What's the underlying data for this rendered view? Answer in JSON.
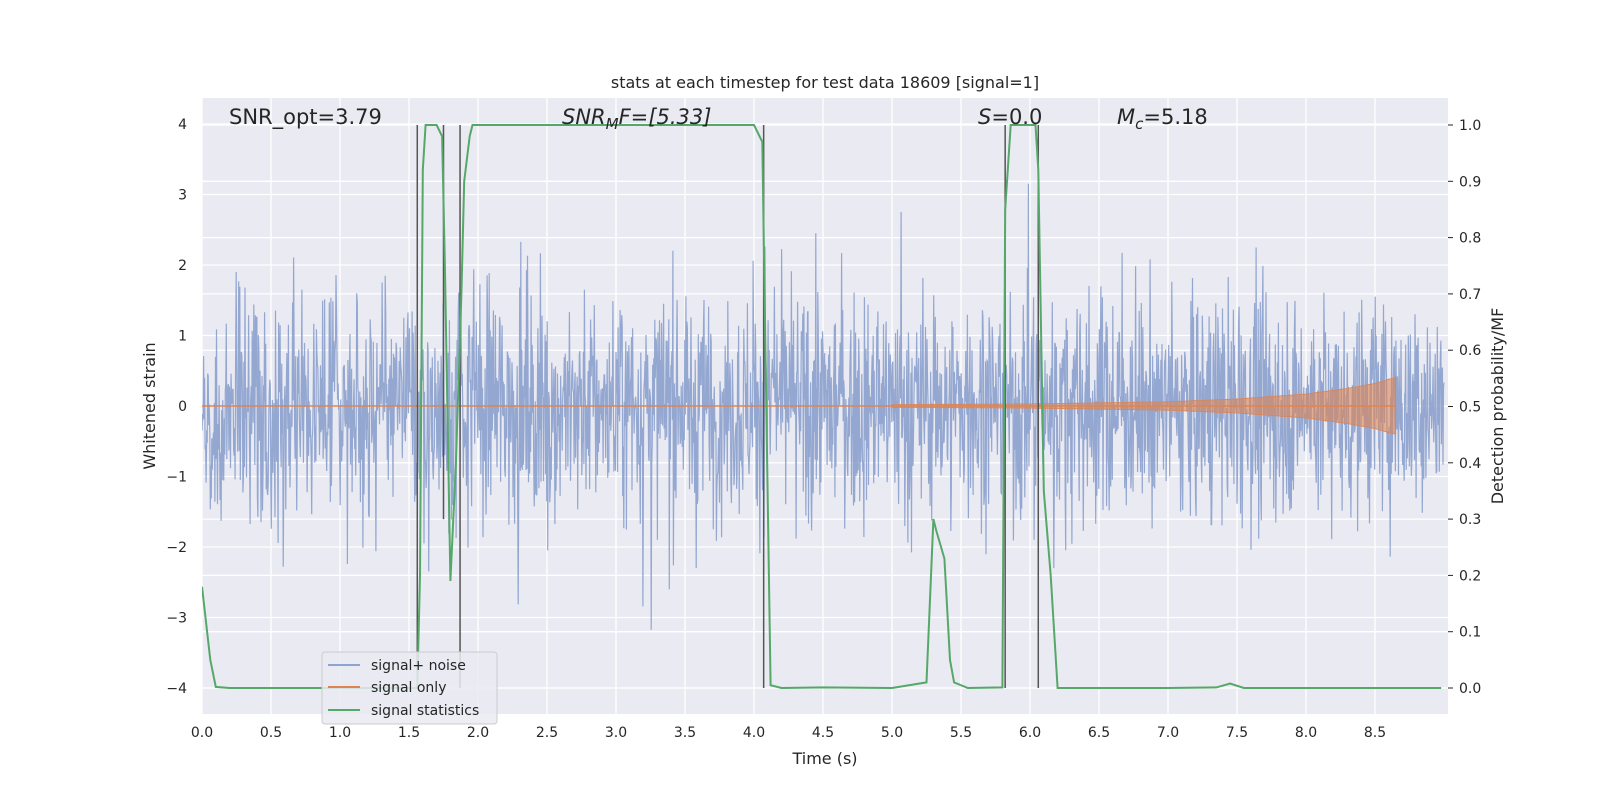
{
  "chart_data": {
    "type": "line",
    "title": "stats at each timestep for test data 18609 [signal=1]",
    "xlabel": "Time (s)",
    "ylabel": "Whitened strain",
    "ylabel_right": "Detection probability/MF",
    "xlim": [
      0.0,
      9.0
    ],
    "ylim": [
      -4.35,
      4.4
    ],
    "ylim_right": [
      -0.05,
      1.04
    ],
    "grid": true,
    "legend_placement": "lower-left",
    "x_ticks": [
      "0.0",
      "0.5",
      "1.0",
      "1.5",
      "2.0",
      "2.5",
      "3.0",
      "3.5",
      "4.0",
      "4.5",
      "5.0",
      "5.5",
      "6.0",
      "6.5",
      "7.0",
      "7.5",
      "8.0",
      "8.5"
    ],
    "y_ticks": [
      "−4",
      "−3",
      "−2",
      "−1",
      "0",
      "1",
      "2",
      "3",
      "4"
    ],
    "y_ticks_right": [
      "0.0",
      "0.1",
      "0.2",
      "0.3",
      "0.4",
      "0.5",
      "0.6",
      "0.7",
      "0.8",
      "0.9",
      "1.0"
    ],
    "annotations": {
      "snr_opt": "SNR_opt=3.79",
      "snr_mf_base": "SNR",
      "snr_mf_sub": "M",
      "snr_mf_rest": "F=[5.33]",
      "s_sym": "S",
      "s_rest": "=0.0",
      "mc_sym": "M",
      "mc_sub": "c",
      "mc_rest": "=5.18"
    },
    "series": [
      {
        "name": "signal+ noise",
        "color": "#8ea3cf",
        "kind": "noise",
        "amplitude_range": [
          -4.0,
          4.0
        ],
        "typical_envelope": [
          -2.6,
          2.6
        ]
      },
      {
        "name": "signal only",
        "color": "#dd8452",
        "kind": "chirp",
        "x_end": 8.65,
        "envelope": [
          [
            5.0,
            0.02
          ],
          [
            6.0,
            0.03
          ],
          [
            7.0,
            0.06
          ],
          [
            7.5,
            0.1
          ],
          [
            8.0,
            0.17
          ],
          [
            8.3,
            0.25
          ],
          [
            8.5,
            0.32
          ],
          [
            8.6,
            0.38
          ],
          [
            8.65,
            0.4
          ]
        ]
      },
      {
        "name": "signal statistics",
        "color": "#55a868",
        "x": [
          0.0,
          0.06,
          0.1,
          0.2,
          1.0,
          1.5,
          1.56,
          1.58,
          1.6,
          1.62,
          1.66,
          1.7,
          1.74,
          1.76,
          1.8,
          1.84,
          1.88,
          1.9,
          1.94,
          1.96,
          2.5,
          3.0,
          3.5,
          4.0,
          4.06,
          4.08,
          4.12,
          4.2,
          4.5,
          5.0,
          5.25,
          5.3,
          5.32,
          5.38,
          5.42,
          5.45,
          5.55,
          5.8,
          5.82,
          5.86,
          5.88,
          6.0,
          6.04,
          6.06,
          6.1,
          6.15,
          6.2,
          7.0,
          7.35,
          7.45,
          7.55,
          8.0,
          8.5,
          8.98
        ],
        "y": [
          0.18,
          0.05,
          0.002,
          0.0,
          0.0,
          0.0,
          0.0,
          0.2,
          0.92,
          1.0,
          1.0,
          1.0,
          0.98,
          0.75,
          0.19,
          0.4,
          0.7,
          0.9,
          0.98,
          1.0,
          1.0,
          1.0,
          1.0,
          1.0,
          0.97,
          0.65,
          0.005,
          0.0,
          0.001,
          0.0,
          0.01,
          0.3,
          0.28,
          0.23,
          0.05,
          0.01,
          0.0,
          0.001,
          0.85,
          1.0,
          1.0,
          1.0,
          1.0,
          0.92,
          0.35,
          0.2,
          0.0,
          0.0,
          0.001,
          0.008,
          0.0,
          0.0,
          0.0,
          0.0
        ]
      }
    ],
    "vertical_lines": [
      {
        "x": 1.56,
        "y_range": [
          0.0,
          1.0
        ]
      },
      {
        "x": 1.75,
        "y_range": [
          0.3,
          1.0
        ]
      },
      {
        "x": 1.87,
        "y_range": [
          0.0,
          1.0
        ]
      },
      {
        "x": 4.07,
        "y_range": [
          0.0,
          1.0
        ]
      },
      {
        "x": 5.82,
        "y_range": [
          0.0,
          1.0
        ]
      },
      {
        "x": 6.06,
        "y_range": [
          0.0,
          1.0
        ]
      }
    ],
    "colors": {
      "axes_bg": "#eaeaf2",
      "grid": "#ffffff",
      "vline": "#555555"
    }
  }
}
